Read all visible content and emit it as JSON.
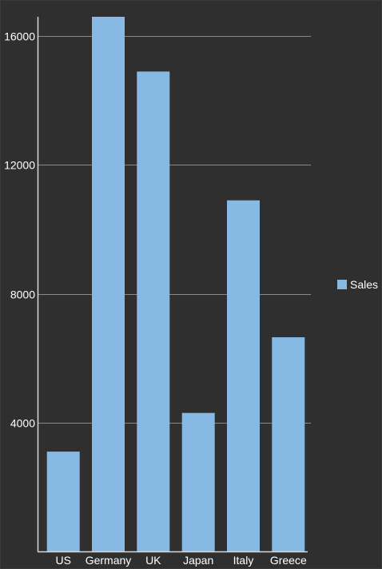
{
  "chart_data": {
    "type": "bar",
    "title": "",
    "xlabel": "",
    "ylabel": "",
    "categories": [
      "US",
      "Germany",
      "UK",
      "Japan",
      "Italy",
      "Greece"
    ],
    "series": [
      {
        "name": "Sales",
        "values": [
          3100,
          16600,
          14900,
          4300,
          10900,
          6650
        ]
      }
    ],
    "ylim": [
      0,
      16600
    ],
    "yticks": [
      4000,
      8000,
      12000,
      16000
    ],
    "ytick_labels": [
      "4000",
      "8000",
      "12000",
      "16000"
    ],
    "grid": "horizontal",
    "legend_position": "right"
  },
  "colors": {
    "background": "#2f2f2f",
    "bar": "#86b9e4",
    "gridline": "#8a8a8a",
    "axis": "#d8d8d8",
    "text": "#ffffff"
  }
}
